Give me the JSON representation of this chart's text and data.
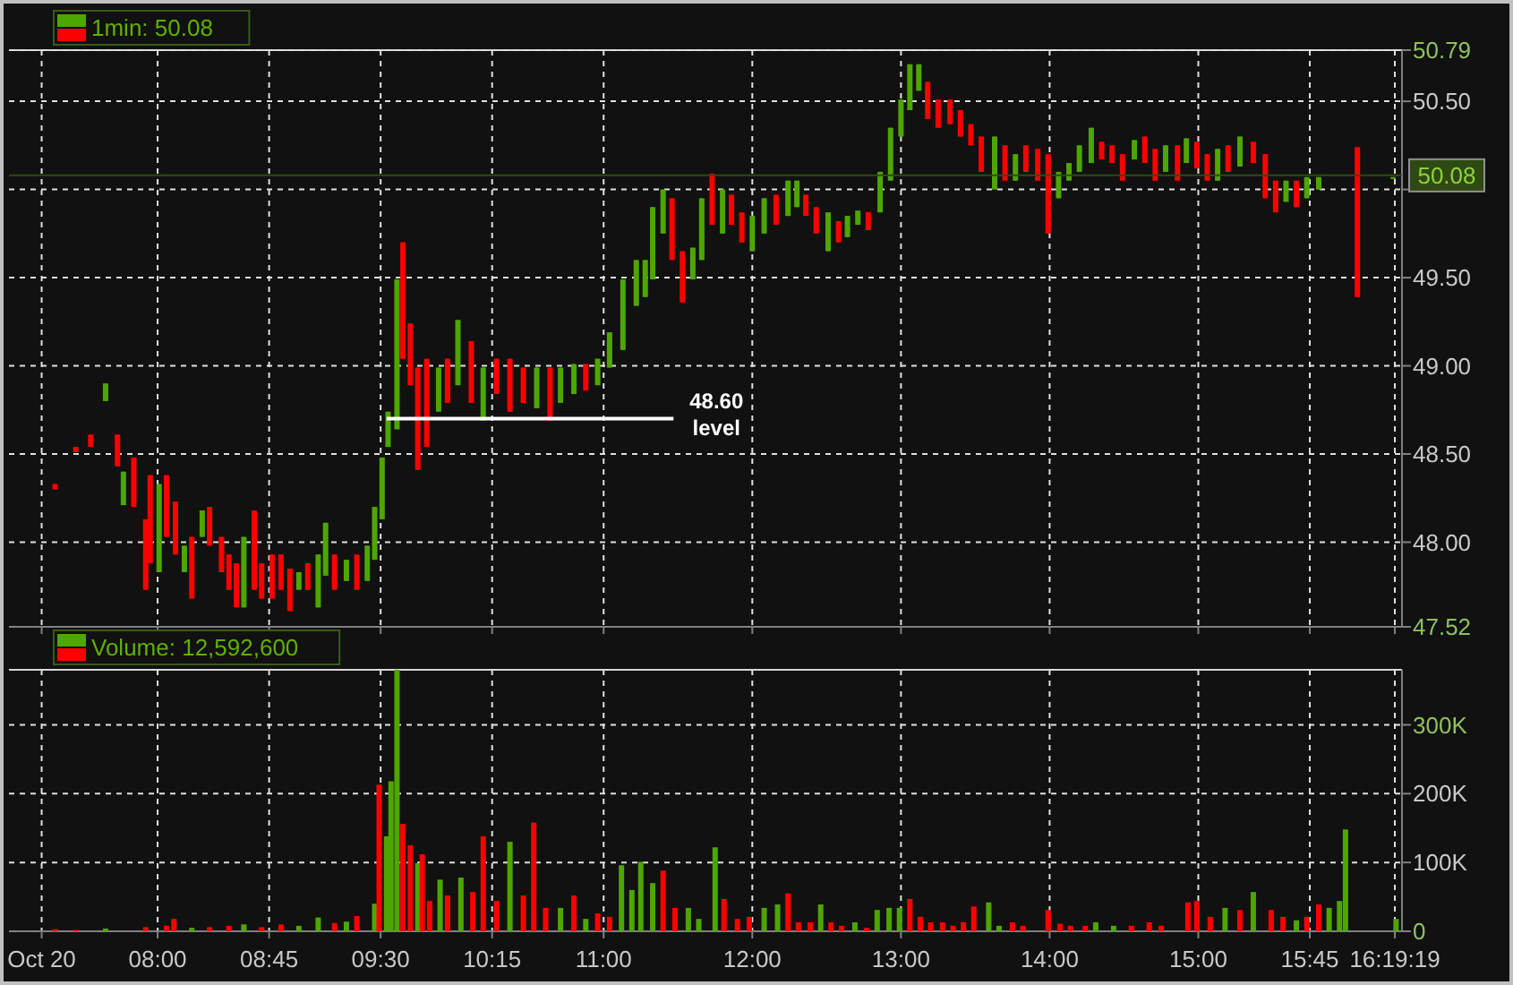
{
  "chart_data": [
    {
      "type": "candlestick",
      "xlim": [
        7,
        16.37
      ],
      "xticks": [
        {
          "value": 7.22,
          "label": null
        },
        {
          "value": 8,
          "label": null
        },
        {
          "value": 8.75,
          "label": null
        },
        {
          "value": 9.5,
          "label": null
        },
        {
          "value": 10.25,
          "label": null
        },
        {
          "value": 11,
          "label": null
        },
        {
          "value": 12,
          "label": null
        },
        {
          "value": 13,
          "label": null
        },
        {
          "value": 14,
          "label": null
        },
        {
          "value": 15,
          "label": null
        },
        {
          "value": 15.75,
          "label": null
        },
        {
          "value": 16.322,
          "label": null
        }
      ],
      "ylim": [
        47.52,
        50.79
      ],
      "yticks": [
        {
          "value": 47.52,
          "label": "47.52"
        },
        {
          "value": 48,
          "label": "48.00"
        },
        {
          "value": 48.5,
          "label": "48.50"
        },
        {
          "value": 49,
          "label": "49.00"
        },
        {
          "value": 49.5,
          "label": "49.50"
        },
        {
          "value": 50,
          "label": null
        },
        {
          "value": 50.5,
          "label": "50.50"
        },
        {
          "value": 50.79,
          "label": "50.79"
        }
      ],
      "tick_labels": "y",
      "grid": true,
      "legend": "top left",
      "ref_lines": [
        {
          "axis": "y",
          "value": 50.08,
          "label": "50.08",
          "color": "#2e4a12"
        }
      ],
      "annotations": [
        "48.60 level"
      ],
      "series": [
        {
          "name": "1min: 50.08",
          "x": [
            7.31,
            7.45,
            7.55,
            7.65,
            7.73,
            7.77,
            7.84,
            7.92,
            7.95,
            8.01,
            8.06,
            8.12,
            8.18,
            8.23,
            8.3,
            8.35,
            8.43,
            8.48,
            8.53,
            8.58,
            8.65,
            8.7,
            8.77,
            8.83,
            8.89,
            8.95,
            9.01,
            9.08,
            9.13,
            9.19,
            9.27,
            9.34,
            9.41,
            9.46,
            9.51,
            9.55,
            9.61,
            9.65,
            9.7,
            9.75,
            9.81,
            9.89,
            9.95,
            10.02,
            10.11,
            10.19,
            10.28,
            10.37,
            10.46,
            10.55,
            10.64,
            10.71,
            10.8,
            10.88,
            10.96,
            11.04,
            11.13,
            11.22,
            11.28,
            11.33,
            11.4,
            11.46,
            11.53,
            11.6,
            11.66,
            11.73,
            11.8,
            11.86,
            11.93,
            12,
            12.08,
            12.16,
            12.24,
            12.3,
            12.36,
            12.43,
            12.51,
            12.58,
            12.64,
            12.71,
            12.78,
            12.86,
            12.93,
            13,
            13.06,
            13.12,
            13.18,
            13.25,
            13.33,
            13.4,
            13.47,
            13.54,
            13.63,
            13.7,
            13.77,
            13.84,
            13.92,
            13.99,
            14.06,
            14.13,
            14.2,
            14.28,
            14.35,
            14.42,
            14.49,
            14.57,
            14.64,
            14.71,
            14.78,
            14.86,
            14.92,
            14.99,
            15.06,
            15.13,
            15.2,
            15.28,
            15.37,
            15.45,
            15.52,
            15.59,
            15.66,
            15.73,
            15.81,
            16.07,
            16.31
          ],
          "ohlc": [
            [
              48.33,
              48.33,
              48.3,
              48.3
            ],
            [
              48.54,
              48.54,
              48.51,
              48.51
            ],
            [
              48.61,
              48.61,
              48.54,
              48.54
            ],
            [
              48.8,
              48.9,
              48.8,
              48.9
            ],
            [
              48.61,
              48.61,
              48.43,
              48.43
            ],
            [
              48.21,
              48.4,
              48.21,
              48.4
            ],
            [
              48.48,
              48.48,
              48.2,
              48.2
            ],
            [
              48.13,
              48.13,
              47.73,
              47.73
            ],
            [
              48.38,
              48.38,
              47.88,
              47.88
            ],
            [
              47.83,
              48.33,
              47.83,
              48.33
            ],
            [
              48.38,
              48.38,
              48.03,
              48.03
            ],
            [
              48.23,
              48.23,
              47.93,
              47.93
            ],
            [
              47.83,
              47.98,
              47.83,
              47.98
            ],
            [
              48.03,
              48.03,
              47.68,
              47.68
            ],
            [
              48.03,
              48.18,
              48.03,
              48.18
            ],
            [
              48.2,
              48.2,
              47.98,
              47.98
            ],
            [
              48.03,
              48.03,
              47.83,
              47.83
            ],
            [
              47.93,
              47.93,
              47.73,
              47.73
            ],
            [
              47.88,
              47.88,
              47.63,
              47.63
            ],
            [
              47.63,
              48.03,
              47.63,
              48.03
            ],
            [
              48.18,
              48.18,
              47.73,
              47.73
            ],
            [
              47.88,
              47.88,
              47.68,
              47.68
            ],
            [
              47.93,
              47.93,
              47.68,
              47.68
            ],
            [
              47.93,
              47.93,
              47.73,
              47.73
            ],
            [
              47.85,
              47.85,
              47.61,
              47.61
            ],
            [
              47.73,
              47.83,
              47.73,
              47.83
            ],
            [
              47.88,
              47.88,
              47.73,
              47.73
            ],
            [
              47.63,
              47.93,
              47.63,
              47.93
            ],
            [
              47.81,
              48.11,
              47.81,
              48.11
            ],
            [
              47.93,
              47.93,
              47.73,
              47.73
            ],
            [
              47.78,
              47.9,
              47.78,
              47.9
            ],
            [
              47.93,
              47.93,
              47.73,
              47.73
            ],
            [
              47.78,
              47.98,
              47.78,
              47.98
            ],
            [
              47.9,
              48.2,
              47.9,
              48.2
            ],
            [
              48.13,
              48.48,
              48.13,
              48.48
            ],
            [
              48.54,
              48.74,
              48.54,
              48.74
            ],
            [
              48.64,
              49.49,
              48.64,
              49.49
            ],
            [
              49.7,
              49.7,
              49.04,
              49.04
            ],
            [
              49.24,
              49.24,
              48.89,
              48.89
            ],
            [
              48.99,
              48.99,
              48.41,
              48.41
            ],
            [
              49.04,
              49.04,
              48.54,
              48.54
            ],
            [
              48.74,
              48.99,
              48.74,
              48.99
            ],
            [
              49.04,
              49.04,
              48.79,
              48.79
            ],
            [
              48.89,
              49.26,
              48.89,
              49.26
            ],
            [
              49.14,
              49.14,
              48.79,
              48.79
            ],
            [
              48.69,
              48.99,
              48.69,
              48.99
            ],
            [
              49.04,
              49.04,
              48.84,
              48.84
            ],
            [
              49.04,
              49.04,
              48.74,
              48.74
            ],
            [
              48.99,
              48.99,
              48.79,
              48.79
            ],
            [
              48.76,
              48.99,
              48.76,
              48.99
            ],
            [
              48.99,
              48.99,
              48.69,
              48.69
            ],
            [
              48.79,
              48.99,
              48.79,
              48.99
            ],
            [
              48.84,
              49.01,
              48.84,
              49.01
            ],
            [
              49.01,
              49.01,
              48.86,
              48.86
            ],
            [
              48.89,
              49.04,
              48.89,
              49.04
            ],
            [
              48.99,
              49.19,
              48.99,
              49.19
            ],
            [
              49.09,
              49.49,
              49.09,
              49.49
            ],
            [
              49.34,
              49.6,
              49.34,
              49.6
            ],
            [
              49.39,
              49.6,
              49.39,
              49.6
            ],
            [
              49.49,
              49.9,
              49.49,
              49.9
            ],
            [
              49.75,
              50,
              49.75,
              50
            ],
            [
              49.95,
              49.95,
              49.6,
              49.6
            ],
            [
              49.65,
              49.65,
              49.36,
              49.36
            ],
            [
              49.49,
              49.67,
              49.49,
              49.67
            ],
            [
              49.6,
              49.95,
              49.6,
              49.95
            ],
            [
              50.09,
              50.09,
              49.8,
              49.8
            ],
            [
              49.75,
              50,
              49.75,
              50
            ],
            [
              49.97,
              49.97,
              49.8,
              49.8
            ],
            [
              49.87,
              49.87,
              49.7,
              49.7
            ],
            [
              49.65,
              49.85,
              49.65,
              49.85
            ],
            [
              49.75,
              49.95,
              49.75,
              49.95
            ],
            [
              49.97,
              49.97,
              49.8,
              49.8
            ],
            [
              49.85,
              50.05,
              49.85,
              50.05
            ],
            [
              49.9,
              50.05,
              49.9,
              50.05
            ],
            [
              49.97,
              49.97,
              49.85,
              49.85
            ],
            [
              49.9,
              49.9,
              49.75,
              49.75
            ],
            [
              49.65,
              49.87,
              49.65,
              49.87
            ],
            [
              49.82,
              49.82,
              49.7,
              49.7
            ],
            [
              49.73,
              49.85,
              49.73,
              49.85
            ],
            [
              49.8,
              49.88,
              49.8,
              49.88
            ],
            [
              49.87,
              49.87,
              49.77,
              49.77
            ],
            [
              49.87,
              50.1,
              49.87,
              50.1
            ],
            [
              50.05,
              50.35,
              50.05,
              50.35
            ],
            [
              50.3,
              50.51,
              50.3,
              50.51
            ],
            [
              50.45,
              50.71,
              50.45,
              50.71
            ],
            [
              50.56,
              50.71,
              50.56,
              50.71
            ],
            [
              50.61,
              50.61,
              50.4,
              50.4
            ],
            [
              50.51,
              50.51,
              50.35,
              50.35
            ],
            [
              50.51,
              50.51,
              50.37,
              50.37
            ],
            [
              50.45,
              50.45,
              50.3,
              50.3
            ],
            [
              50.37,
              50.37,
              50.25,
              50.25
            ],
            [
              50.3,
              50.3,
              50.1,
              50.1
            ],
            [
              50,
              50.3,
              50,
              50.3
            ],
            [
              50.25,
              50.25,
              50.05,
              50.05
            ],
            [
              50.05,
              50.2,
              50.05,
              50.2
            ],
            [
              50.25,
              50.25,
              50.1,
              50.1
            ],
            [
              50.23,
              50.23,
              50.05,
              50.05
            ],
            [
              50.2,
              50.2,
              49.75,
              49.75
            ],
            [
              49.95,
              50.1,
              49.95,
              50.1
            ],
            [
              50.05,
              50.15,
              50.05,
              50.15
            ],
            [
              50.1,
              50.25,
              50.1,
              50.25
            ],
            [
              50.15,
              50.35,
              50.15,
              50.35
            ],
            [
              50.27,
              50.27,
              50.17,
              50.17
            ],
            [
              50.25,
              50.25,
              50.15,
              50.15
            ],
            [
              50.2,
              50.2,
              50.05,
              50.05
            ],
            [
              50.17,
              50.28,
              50.17,
              50.28
            ],
            [
              50.3,
              50.3,
              50.15,
              50.15
            ],
            [
              50.23,
              50.23,
              50.05,
              50.05
            ],
            [
              50.1,
              50.25,
              50.1,
              50.25
            ],
            [
              50.25,
              50.25,
              50.05,
              50.05
            ],
            [
              50.15,
              50.29,
              50.15,
              50.29
            ],
            [
              50.27,
              50.27,
              50.12,
              50.12
            ],
            [
              50.2,
              50.2,
              50.05,
              50.05
            ],
            [
              50.05,
              50.23,
              50.05,
              50.23
            ],
            [
              50.25,
              50.25,
              50.1,
              50.1
            ],
            [
              50.13,
              50.3,
              50.13,
              50.3
            ],
            [
              50.27,
              50.27,
              50.15,
              50.15
            ],
            [
              50.2,
              50.2,
              49.95,
              49.95
            ],
            [
              50.05,
              50.05,
              49.87,
              49.87
            ],
            [
              49.93,
              50.05,
              49.93,
              50.05
            ],
            [
              50.05,
              50.05,
              49.9,
              49.9
            ],
            [
              49.95,
              50.07,
              49.95,
              50.07
            ],
            [
              50,
              50.07,
              50,
              50.07
            ],
            [
              50.24,
              50.24,
              49.39,
              49.39
            ],
            [
              50.06,
              50.07,
              50.06,
              50.07
            ]
          ],
          "colors": [
            "#ff0000",
            "#ff0000",
            "#ff0000",
            "#4ea600",
            "#ff0000",
            "#4ea600",
            "#ff0000",
            "#ff0000",
            "#ff0000",
            "#4ea600",
            "#ff0000",
            "#ff0000",
            "#4ea600",
            "#ff0000",
            "#4ea600",
            "#ff0000",
            "#ff0000",
            "#ff0000",
            "#ff0000",
            "#4ea600",
            "#ff0000",
            "#ff0000",
            "#ff0000",
            "#ff0000",
            "#ff0000",
            "#4ea600",
            "#ff0000",
            "#4ea600",
            "#4ea600",
            "#ff0000",
            "#4ea600",
            "#ff0000",
            "#4ea600",
            "#4ea600",
            "#4ea600",
            "#4ea600",
            "#4ea600",
            "#ff0000",
            "#ff0000",
            "#ff0000",
            "#ff0000",
            "#4ea600",
            "#ff0000",
            "#4ea600",
            "#ff0000",
            "#4ea600",
            "#ff0000",
            "#ff0000",
            "#ff0000",
            "#4ea600",
            "#ff0000",
            "#4ea600",
            "#4ea600",
            "#ff0000",
            "#4ea600",
            "#4ea600",
            "#4ea600",
            "#4ea600",
            "#4ea600",
            "#4ea600",
            "#4ea600",
            "#ff0000",
            "#ff0000",
            "#4ea600",
            "#4ea600",
            "#ff0000",
            "#4ea600",
            "#ff0000",
            "#ff0000",
            "#4ea600",
            "#4ea600",
            "#ff0000",
            "#4ea600",
            "#4ea600",
            "#ff0000",
            "#ff0000",
            "#4ea600",
            "#ff0000",
            "#4ea600",
            "#4ea600",
            "#ff0000",
            "#4ea600",
            "#4ea600",
            "#4ea600",
            "#4ea600",
            "#4ea600",
            "#ff0000",
            "#ff0000",
            "#ff0000",
            "#ff0000",
            "#ff0000",
            "#ff0000",
            "#4ea600",
            "#ff0000",
            "#4ea600",
            "#ff0000",
            "#ff0000",
            "#ff0000",
            "#4ea600",
            "#4ea600",
            "#4ea600",
            "#4ea600",
            "#ff0000",
            "#ff0000",
            "#ff0000",
            "#4ea600",
            "#ff0000",
            "#ff0000",
            "#4ea600",
            "#ff0000",
            "#4ea600",
            "#ff0000",
            "#ff0000",
            "#4ea600",
            "#ff0000",
            "#4ea600",
            "#ff0000",
            "#ff0000",
            "#ff0000",
            "#4ea600",
            "#ff0000",
            "#4ea600",
            "#4ea600",
            "#ff0000",
            "#4ea600"
          ]
        },
        {
          "type": "line",
          "color": "#ffffff",
          "x": [
            9.54,
            11.47
          ],
          "values": [
            48.7,
            48.7
          ]
        }
      ]
    },
    {
      "type": "bar",
      "xlim": [
        7,
        16.37
      ],
      "xticks": [
        {
          "value": 7.22,
          "label": "Oct 20"
        },
        {
          "value": 8,
          "label": "08:00"
        },
        {
          "value": 8.75,
          "label": "08:45"
        },
        {
          "value": 9.5,
          "label": "09:30"
        },
        {
          "value": 10.25,
          "label": "10:15"
        },
        {
          "value": 11,
          "label": "11:00"
        },
        {
          "value": 12,
          "label": "12:00"
        },
        {
          "value": 13,
          "label": "13:00"
        },
        {
          "value": 14,
          "label": "14:00"
        },
        {
          "value": 15,
          "label": "15:00"
        },
        {
          "value": 15.75,
          "label": "15:45"
        },
        {
          "value": 16.322,
          "label": "16:19:19"
        }
      ],
      "ylim": [
        0,
        380000
      ],
      "yticks": [
        {
          "value": 0,
          "label": "0"
        },
        {
          "value": 100000,
          "label": "100K"
        },
        {
          "value": 200000,
          "label": "200K"
        },
        {
          "value": 300000,
          "label": "300K"
        }
      ],
      "grid": true,
      "legend": "top left",
      "series": [
        {
          "name": "Volume: 12,592,600",
          "x": [
            7.31,
            7.45,
            7.65,
            7.92,
            8.06,
            8.11,
            8.23,
            8.35,
            8.48,
            8.58,
            8.7,
            8.83,
            8.95,
            9.08,
            9.19,
            9.27,
            9.34,
            9.46,
            9.49,
            9.54,
            9.57,
            9.61,
            9.65,
            9.7,
            9.75,
            9.78,
            9.83,
            9.9,
            9.95,
            10.04,
            10.12,
            10.19,
            10.28,
            10.37,
            10.46,
            10.53,
            10.61,
            10.71,
            10.8,
            10.88,
            10.96,
            11.04,
            11.12,
            11.19,
            11.25,
            11.33,
            11.4,
            11.48,
            11.57,
            11.64,
            11.75,
            11.81,
            11.9,
            11.98,
            12.08,
            12.17,
            12.24,
            12.31,
            12.39,
            12.46,
            12.53,
            12.6,
            12.69,
            12.77,
            12.84,
            12.92,
            12.99,
            13.06,
            13.13,
            13.2,
            13.28,
            13.35,
            13.42,
            13.49,
            13.59,
            13.66,
            13.75,
            13.82,
            13.99,
            14.07,
            14.14,
            14.24,
            14.31,
            14.43,
            14.55,
            14.67,
            14.75,
            14.93,
            14.99,
            15.08,
            15.18,
            15.28,
            15.37,
            15.49,
            15.57,
            15.66,
            15.73,
            15.81,
            15.88,
            15.95,
            15.99,
            16.33
          ],
          "values": [
            3000,
            2000,
            4000,
            6000,
            8000,
            18000,
            5000,
            6000,
            8000,
            10000,
            6000,
            10000,
            8000,
            20000,
            12000,
            14000,
            22000,
            40000,
            213000,
            138000,
            218000,
            380000,
            156000,
            125000,
            99000,
            112000,
            44000,
            75000,
            52000,
            78000,
            57000,
            138000,
            44000,
            130000,
            52000,
            158000,
            34000,
            34000,
            52000,
            18000,
            26000,
            21000,
            96000,
            60000,
            101000,
            70000,
            88000,
            34000,
            34000,
            18000,
            122000,
            47000,
            18000,
            21000,
            34000,
            39000,
            55000,
            13000,
            13000,
            39000,
            13000,
            8000,
            13000,
            5000,
            31000,
            34000,
            34000,
            47000,
            21000,
            13000,
            13000,
            8000,
            13000,
            36000,
            42000,
            8000,
            13000,
            8000,
            31000,
            11000,
            8000,
            8000,
            13000,
            8000,
            8000,
            13000,
            8000,
            42000,
            44000,
            21000,
            34000,
            31000,
            57000,
            31000,
            21000,
            16000,
            21000,
            39000,
            34000,
            44000,
            148000,
            18000
          ],
          "colors": [
            "#ff0000",
            "#ff0000",
            "#4ea600",
            "#ff0000",
            "#ff0000",
            "#ff0000",
            "#4ea600",
            "#ff0000",
            "#ff0000",
            "#4ea600",
            "#ff0000",
            "#ff0000",
            "#4ea600",
            "#4ea600",
            "#ff0000",
            "#4ea600",
            "#ff0000",
            "#4ea600",
            "#ff0000",
            "#4ea600",
            "#4ea600",
            "#4ea600",
            "#ff0000",
            "#ff0000",
            "#4ea600",
            "#ff0000",
            "#ff0000",
            "#4ea600",
            "#ff0000",
            "#4ea600",
            "#ff0000",
            "#ff0000",
            "#ff0000",
            "#4ea600",
            "#ff0000",
            "#ff0000",
            "#ff0000",
            "#4ea600",
            "#ff0000",
            "#4ea600",
            "#ff0000",
            "#ff0000",
            "#4ea600",
            "#4ea600",
            "#4ea600",
            "#4ea600",
            "#ff0000",
            "#ff0000",
            "#4ea600",
            "#4ea600",
            "#4ea600",
            "#ff0000",
            "#ff0000",
            "#ff0000",
            "#4ea600",
            "#4ea600",
            "#ff0000",
            "#ff0000",
            "#ff0000",
            "#4ea600",
            "#ff0000",
            "#ff0000",
            "#4ea600",
            "#ff0000",
            "#4ea600",
            "#4ea600",
            "#4ea600",
            "#ff0000",
            "#ff0000",
            "#ff0000",
            "#ff0000",
            "#ff0000",
            "#ff0000",
            "#ff0000",
            "#4ea600",
            "#4ea600",
            "#ff0000",
            "#ff0000",
            "#ff0000",
            "#ff0000",
            "#ff0000",
            "#ff0000",
            "#4ea600",
            "#4ea600",
            "#ff0000",
            "#ff0000",
            "#ff0000",
            "#ff0000",
            "#ff0000",
            "#ff0000",
            "#4ea600",
            "#ff0000",
            "#4ea600",
            "#ff0000",
            "#ff0000",
            "#4ea600",
            "#ff0000",
            "#ff0000",
            "#4ea600",
            "#4ea600",
            "#4ea600",
            "#4ea600"
          ]
        }
      ]
    }
  ]
}
